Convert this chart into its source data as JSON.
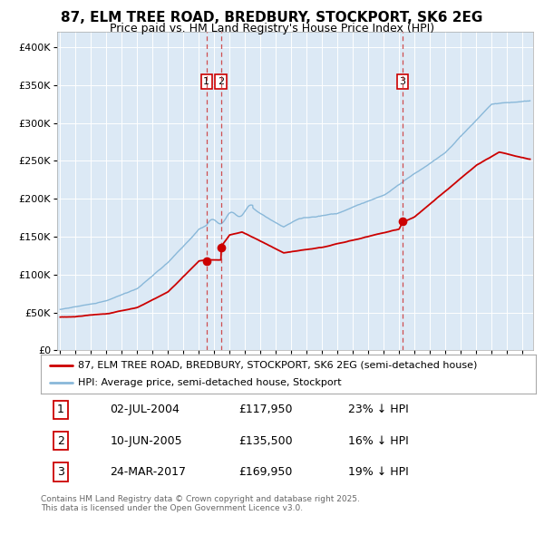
{
  "title": "87, ELM TREE ROAD, BREDBURY, STOCKPORT, SK6 2EG",
  "subtitle": "Price paid vs. HM Land Registry's House Price Index (HPI)",
  "legend_line1": "87, ELM TREE ROAD, BREDBURY, STOCKPORT, SK6 2EG (semi-detached house)",
  "legend_line2": "HPI: Average price, semi-detached house, Stockport",
  "footer": "Contains HM Land Registry data © Crown copyright and database right 2025.\nThis data is licensed under the Open Government Licence v3.0.",
  "table": [
    {
      "num": "1",
      "date": "02-JUL-2004",
      "price": "£117,950",
      "hpi": "23% ↓ HPI"
    },
    {
      "num": "2",
      "date": "10-JUN-2005",
      "price": "£135,500",
      "hpi": "16% ↓ HPI"
    },
    {
      "num": "3",
      "date": "24-MAR-2017",
      "price": "£169,950",
      "hpi": "19% ↓ HPI"
    }
  ],
  "background_color": "#dce9f5",
  "red_color": "#cc0000",
  "blue_color": "#89b8d9",
  "vline_color": "#cc3333",
  "sale1_date": 2004.5,
  "sale2_date": 2005.44,
  "sale3_date": 2017.22,
  "sale1_price": 117950,
  "sale2_price": 135500,
  "sale3_price": 169950,
  "ylim": [
    0,
    420000
  ],
  "xlim_start": 1994.8,
  "xlim_end": 2025.7
}
